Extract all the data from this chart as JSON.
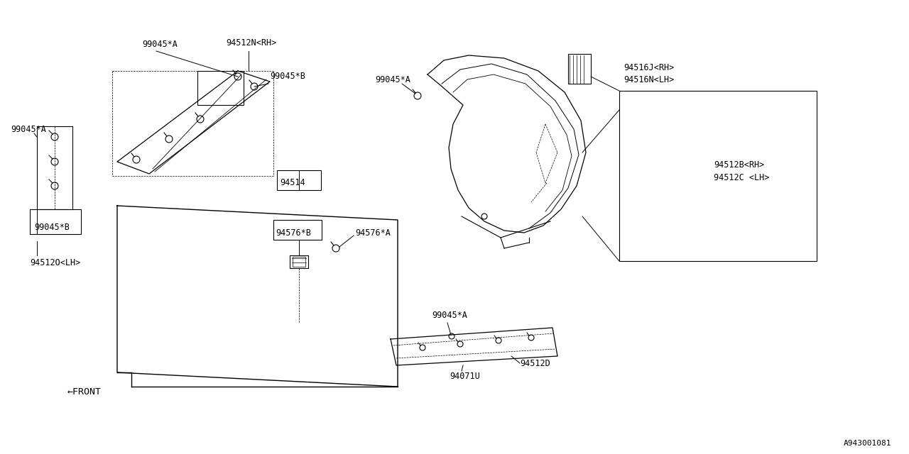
{
  "bg_color": "#ffffff",
  "line_color": "#000000",
  "fig_width": 12.8,
  "fig_height": 6.4,
  "labels": {
    "94512N_RH": "94512N<RH>",
    "99045A_1": "99045*A",
    "99045B_1": "99045*B",
    "99045A_2": "99045*A",
    "99045B_2": "99045*B",
    "94512O_LH": "94512O<LH>",
    "94514": "94514",
    "94576B": "94576*B",
    "94576A": "94576*A",
    "99045A_3": "99045*A",
    "94516J_RH": "94516J<RH>",
    "94516N_LH": "94516N<LH>",
    "94512B_RH": "94512B<RH>",
    "94512C_LH": "94512C <LH>",
    "99045A_4": "99045*A",
    "94071U": "94071U",
    "94512D": "94512D",
    "FRONT": "←FRONT",
    "ref": "A943001081"
  },
  "font_size": 8.5
}
